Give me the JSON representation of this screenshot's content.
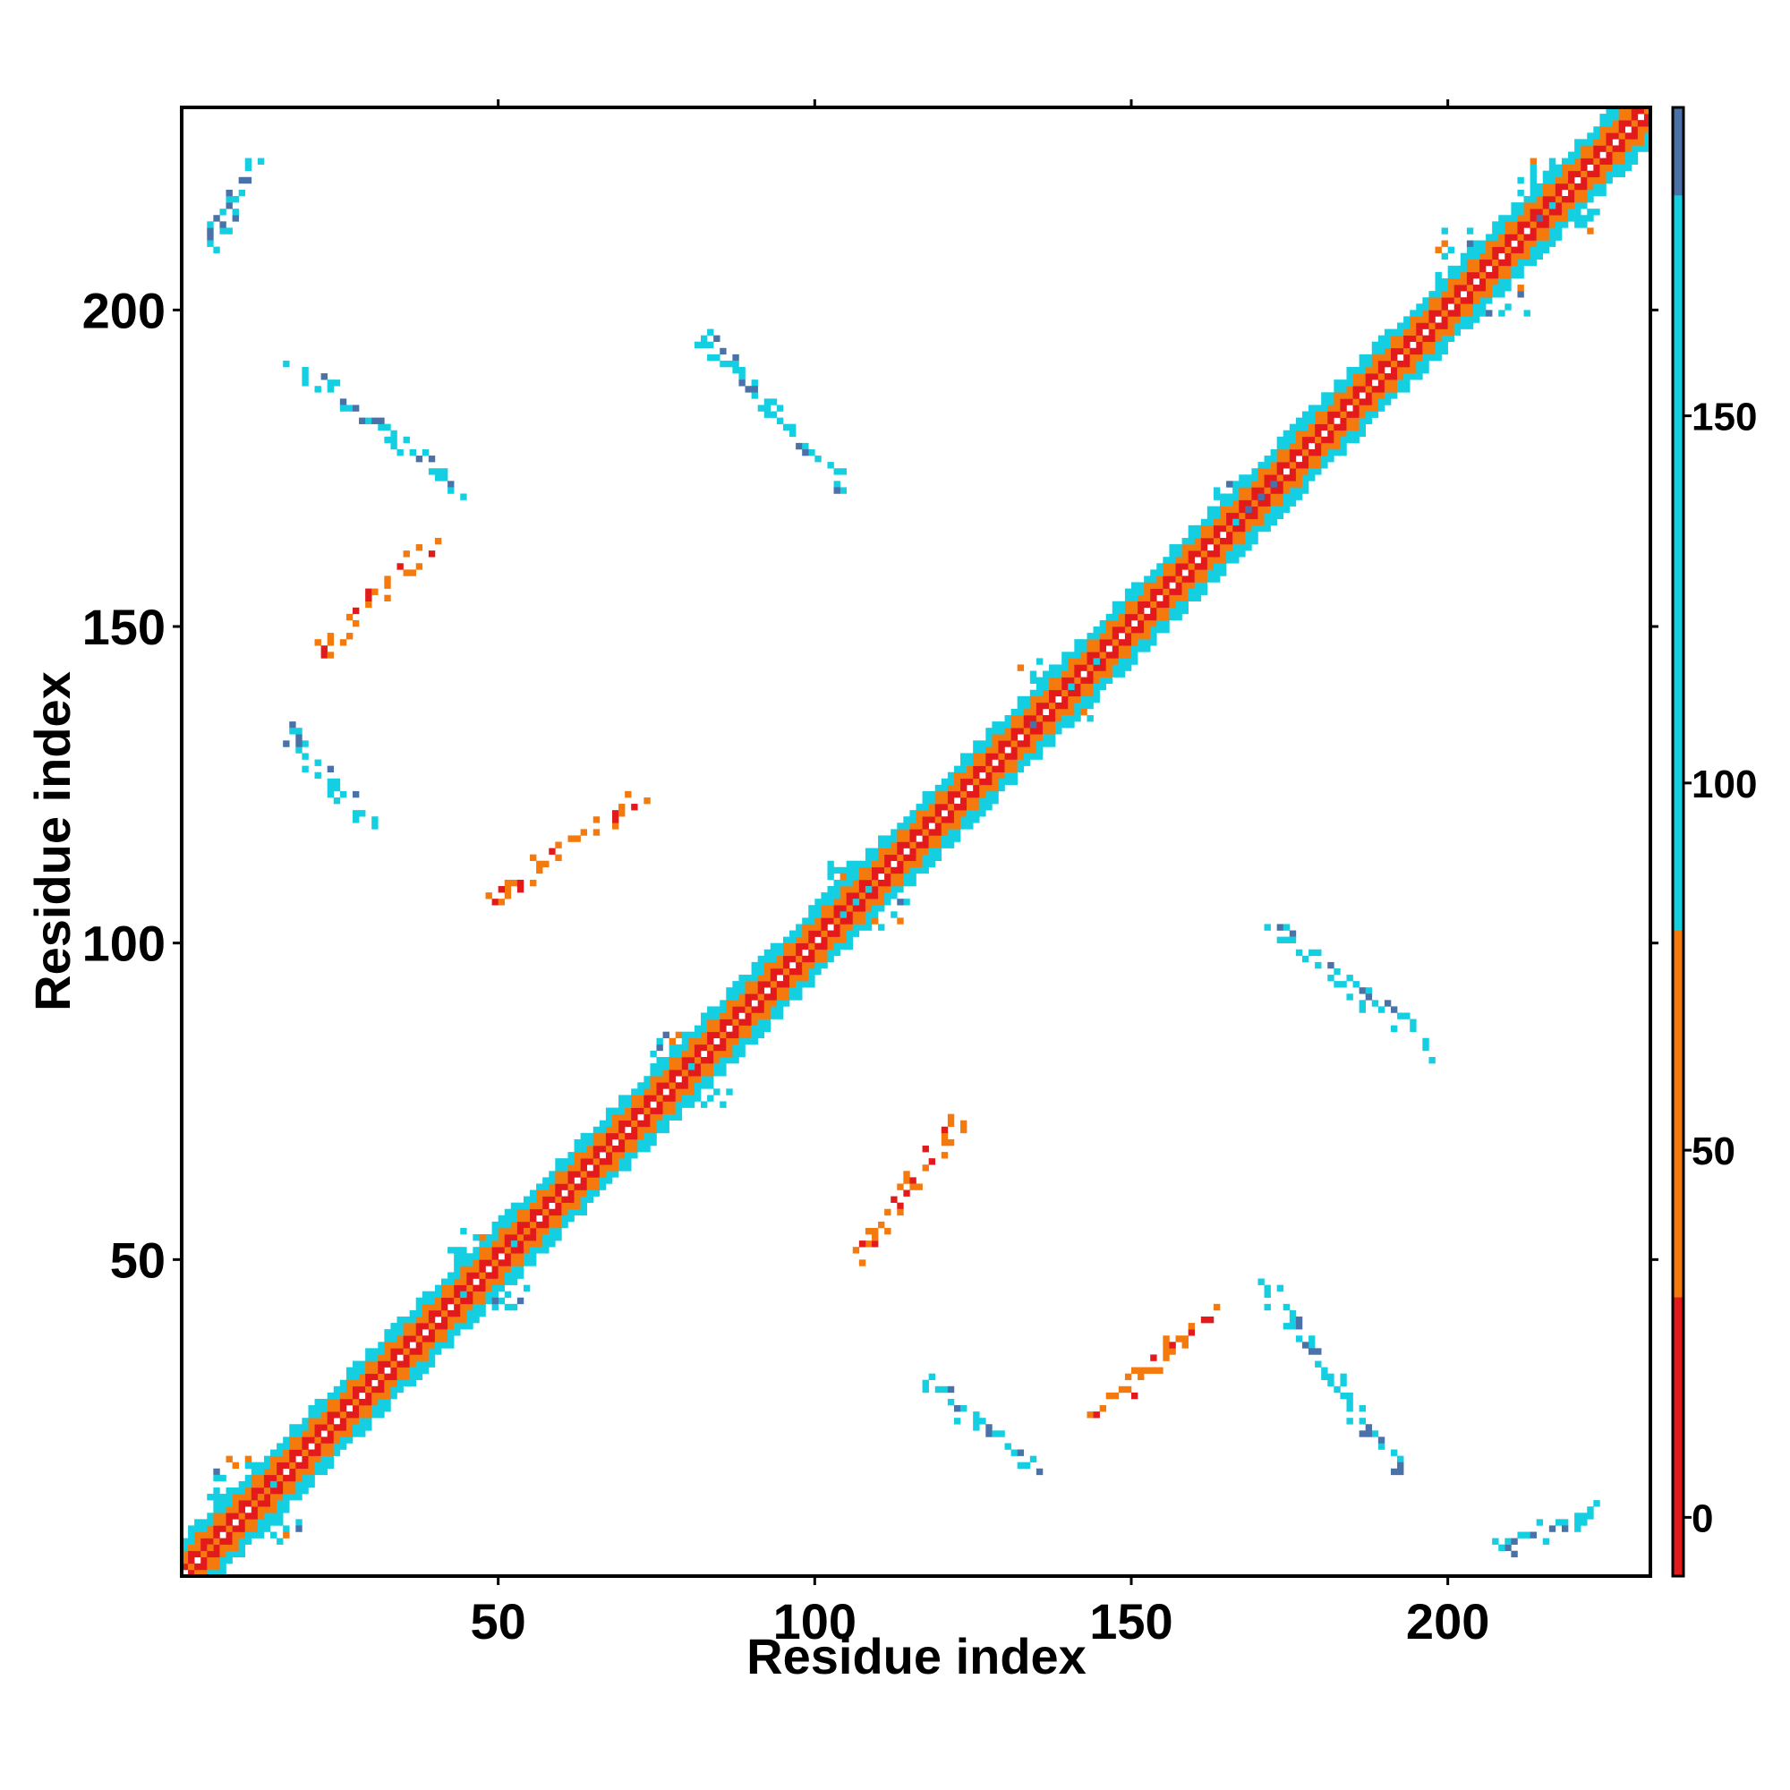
{
  "chart_data": {
    "type": "heatmap",
    "xlabel": "Residue index",
    "ylabel": "Residue index",
    "xlim": [
      0,
      232
    ],
    "ylim": [
      0,
      232
    ],
    "x_ticks": [
      50,
      100,
      150,
      200
    ],
    "y_ticks": [
      50,
      100,
      150,
      200
    ],
    "colorbar": {
      "min": -8,
      "max": 192,
      "ticks": [
        0,
        50,
        100,
        150
      ],
      "bands": [
        {
          "from": -8,
          "to": 30,
          "color": "#e31a1c"
        },
        {
          "from": 30,
          "to": 80,
          "color": "#f47a0e"
        },
        {
          "from": 80,
          "to": 180,
          "color": "#14cfe2"
        },
        {
          "from": 180,
          "to": 192,
          "color": "#4a72a8"
        }
      ]
    },
    "diagonal_band": {
      "from": 1,
      "to": 232,
      "half_width": 6
    },
    "diagonal_spikes": [
      {
        "center": 12,
        "size": 7
      },
      {
        "center": 49,
        "size": 6
      },
      {
        "center": 81,
        "size": 6
      },
      {
        "center": 109,
        "size": 6
      },
      {
        "center": 139,
        "size": 6
      },
      {
        "center": 169,
        "size": 5
      },
      {
        "center": 206,
        "size": 7
      },
      {
        "center": 218,
        "size": 6
      }
    ],
    "contact_streaks": [
      {
        "x1": 17,
        "y1": 193,
        "x2": 45,
        "y2": 172,
        "color": "#14cfe2"
      },
      {
        "x1": 22,
        "y1": 146,
        "x2": 40,
        "y2": 164,
        "color": "#f47a0e"
      },
      {
        "x1": 17,
        "y1": 134,
        "x2": 32,
        "y2": 117,
        "color": "#14cfe2"
      },
      {
        "x1": 50,
        "y1": 108,
        "x2": 74,
        "y2": 124,
        "color": "#f47a0e"
      },
      {
        "x1": 83,
        "y1": 196,
        "x2": 105,
        "y2": 173,
        "color": "#14cfe2"
      },
      {
        "x1": 107,
        "y1": 50,
        "x2": 124,
        "y2": 74,
        "color": "#f47a0e"
      },
      {
        "x1": 117,
        "y1": 32,
        "x2": 136,
        "y2": 17,
        "color": "#14cfe2"
      },
      {
        "x1": 143,
        "y1": 24,
        "x2": 163,
        "y2": 42,
        "color": "#f47a0e"
      },
      {
        "x1": 172,
        "y1": 46,
        "x2": 193,
        "y2": 17,
        "color": "#14cfe2"
      },
      {
        "x1": 173,
        "y1": 103,
        "x2": 199,
        "y2": 83,
        "color": "#14cfe2"
      },
      {
        "x1": 5,
        "y1": 210,
        "x2": 12,
        "y2": 225,
        "color": "#14cfe2"
      },
      {
        "x1": 209,
        "y1": 5,
        "x2": 225,
        "y2": 11,
        "color": "#14cfe2"
      }
    ]
  }
}
